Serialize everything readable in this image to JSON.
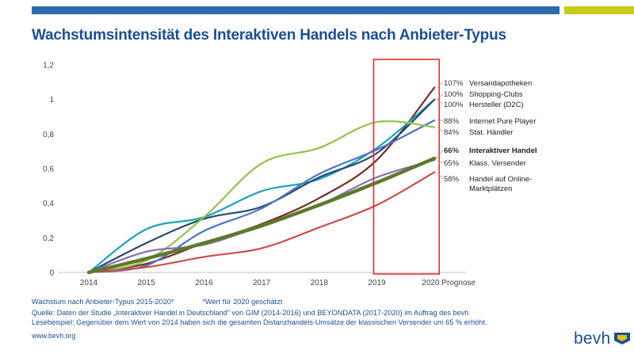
{
  "colors": {
    "top_bar_blue": "#2c6cae",
    "top_bar_green": "#c8ca1a",
    "title": "#1b4f93",
    "footer_text": "#1b4f93",
    "highlight_box": "#e03030",
    "axis_text": "#444444",
    "logo_text": "#1b4f93",
    "logo_mark": "#e4c21b"
  },
  "header": {
    "title": "Wachstumsintensität des Interaktiven Handels nach Anbieter-Typus"
  },
  "footer": {
    "line1": "Wachstum nach Anbieter-Typus 2015-2020*",
    "line1_note": "*Wert für 2020 geschätzt",
    "source": "Quelle: Daten der Studie „Interaktiver Handel in Deutschland\" von GIM (2014-2016) und BEYONDATA (2017-2020) im Auftrag des bevh",
    "example": "Lesebeispiel: Gegenüber dem Wert von 2014 haben sich die gesamten Distanzhandels-Umsätze der klassischen Versender um 65 % erhöht.",
    "url": "www.bevh.org"
  },
  "logo": {
    "text": "bevh",
    "mark": "chevron-flag-icon"
  },
  "chart_data": {
    "type": "line",
    "title": "Wachstumsintensität des Interaktiven Handels nach Anbieter-Typus",
    "xlabel": "",
    "ylabel": "",
    "categories": [
      "2014",
      "2015",
      "2016",
      "2017",
      "2018",
      "2019",
      "2020 Prognose"
    ],
    "y_ticks": [
      "0",
      "0,2",
      "0,4",
      "0,6",
      "0,8",
      "1",
      "1,2"
    ],
    "ylim": [
      0,
      1.2
    ],
    "grid": false,
    "legend": "right, direct labels at line ends",
    "highlight": {
      "from": "2019",
      "to": "2020 Prognose",
      "color": "#e03030"
    },
    "series": [
      {
        "name": "Versandapotheken",
        "end_label": "107%",
        "color": "#7a2a24",
        "width": 2.2,
        "bold": false,
        "values": [
          0,
          0.05,
          0.17,
          0.28,
          0.43,
          0.65,
          1.07
        ]
      },
      {
        "name": "Shopping-Clubs",
        "end_label": "100%",
        "color": "#1aa3b8",
        "width": 2.2,
        "bold": false,
        "values": [
          0,
          0.25,
          0.32,
          0.47,
          0.54,
          0.72,
          1.0
        ]
      },
      {
        "name": "Hersteller (D2C)",
        "end_label": "100%",
        "color": "#2a4a6e",
        "width": 2.2,
        "bold": false,
        "values": [
          0,
          0.17,
          0.31,
          0.38,
          0.55,
          0.69,
          1.0
        ]
      },
      {
        "name": "Internet Pure Player",
        "end_label": "88%",
        "color": "#4a74c4",
        "width": 2.2,
        "bold": false,
        "values": [
          0,
          0.04,
          0.24,
          0.37,
          0.57,
          0.71,
          0.88
        ]
      },
      {
        "name": "Stat. Händler",
        "end_label": "84%",
        "color": "#93c24e",
        "width": 2.2,
        "bold": false,
        "values": [
          0,
          0.07,
          0.32,
          0.63,
          0.72,
          0.87,
          0.84
        ]
      },
      {
        "name": "Interaktiver Handel",
        "end_label": "66%",
        "color": "#5c7a2b",
        "width": 4.5,
        "bold": true,
        "values": [
          0,
          0.08,
          0.17,
          0.27,
          0.39,
          0.52,
          0.66
        ]
      },
      {
        "name": "Klass. Versender",
        "end_label": "65%",
        "color": "#8a6bb8",
        "width": 2.2,
        "bold": false,
        "values": [
          0,
          0.12,
          0.16,
          0.27,
          0.39,
          0.55,
          0.65
        ]
      },
      {
        "name": "Handel auf Online-Marktplätzen",
        "label_lines": [
          "Handel auf Online-",
          "Marktplätzen"
        ],
        "end_label": "58%",
        "color": "#d04a48",
        "width": 2.2,
        "bold": false,
        "values": [
          0,
          0.03,
          0.09,
          0.14,
          0.26,
          0.39,
          0.58
        ]
      }
    ]
  }
}
